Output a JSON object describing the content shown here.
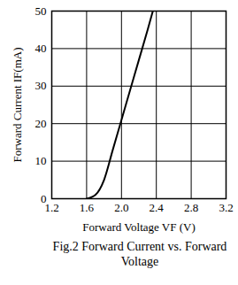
{
  "chart_data": {
    "type": "line",
    "title": "Fig.2 Forward Current vs. Forward Voltage",
    "x_label": "Forward Voltage VF (V)",
    "y_label": "Forward Current IF(mA)",
    "x": [
      1.6,
      1.7,
      1.8,
      1.9,
      2.0,
      2.1,
      2.2,
      2.3,
      2.36
    ],
    "values": [
      0,
      1,
      5,
      13,
      21,
      29,
      37,
      45,
      50
    ],
    "color": "#000000",
    "xlim": [
      1.2,
      3.2
    ],
    "xticks": [
      1.2,
      1.6,
      {
        "value": 2,
        "label": "2.0"
      },
      2.4,
      2.8,
      3.2
    ],
    "ylim": [
      0,
      50
    ],
    "yticks": [
      0,
      10,
      20,
      30,
      40,
      50
    ],
    "grid": true
  }
}
